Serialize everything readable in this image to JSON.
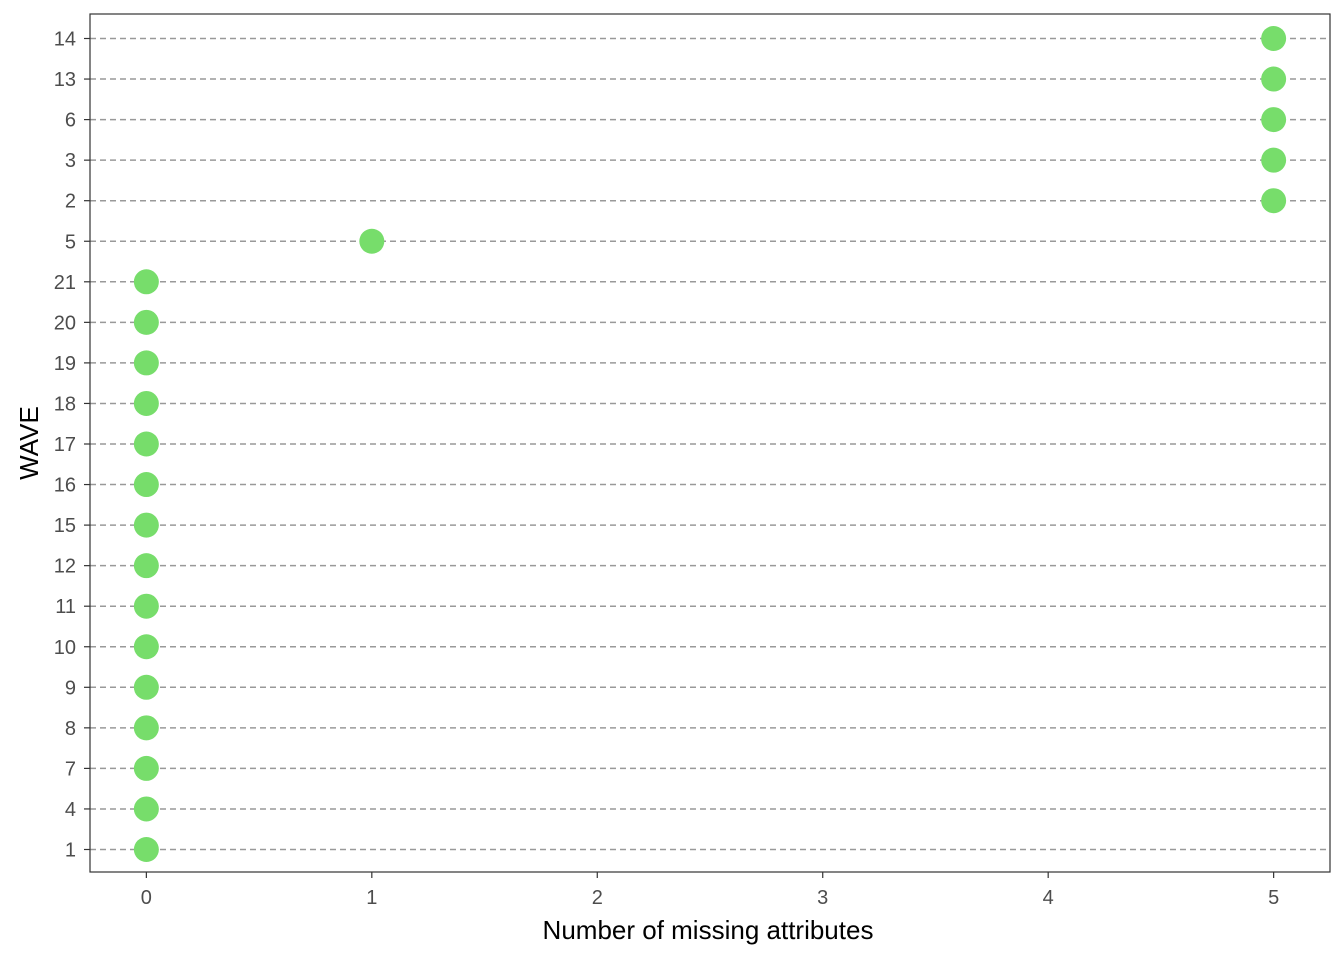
{
  "chart_data": {
    "type": "scatter",
    "title": "",
    "xlabel": "Number of missing attributes",
    "ylabel": "WAVE",
    "xlim": [
      -0.25,
      5.25
    ],
    "x_ticks": [
      "0",
      "1",
      "2",
      "3",
      "4",
      "5"
    ],
    "y_categories": [
      "1",
      "4",
      "7",
      "8",
      "9",
      "10",
      "11",
      "12",
      "15",
      "16",
      "17",
      "18",
      "19",
      "20",
      "21",
      "5",
      "2",
      "3",
      "6",
      "13",
      "14"
    ],
    "points": [
      {
        "wave": "1",
        "missing": 0
      },
      {
        "wave": "4",
        "missing": 0
      },
      {
        "wave": "7",
        "missing": 0
      },
      {
        "wave": "8",
        "missing": 0
      },
      {
        "wave": "9",
        "missing": 0
      },
      {
        "wave": "10",
        "missing": 0
      },
      {
        "wave": "11",
        "missing": 0
      },
      {
        "wave": "12",
        "missing": 0
      },
      {
        "wave": "15",
        "missing": 0
      },
      {
        "wave": "16",
        "missing": 0
      },
      {
        "wave": "17",
        "missing": 0
      },
      {
        "wave": "18",
        "missing": 0
      },
      {
        "wave": "19",
        "missing": 0
      },
      {
        "wave": "20",
        "missing": 0
      },
      {
        "wave": "21",
        "missing": 0
      },
      {
        "wave": "5",
        "missing": 1
      },
      {
        "wave": "2",
        "missing": 5
      },
      {
        "wave": "3",
        "missing": 5
      },
      {
        "wave": "6",
        "missing": 5
      },
      {
        "wave": "13",
        "missing": 5
      },
      {
        "wave": "14",
        "missing": 5
      }
    ],
    "grid": "horizontal-dashed",
    "legend": "none",
    "point_color": "#77dd6b"
  }
}
